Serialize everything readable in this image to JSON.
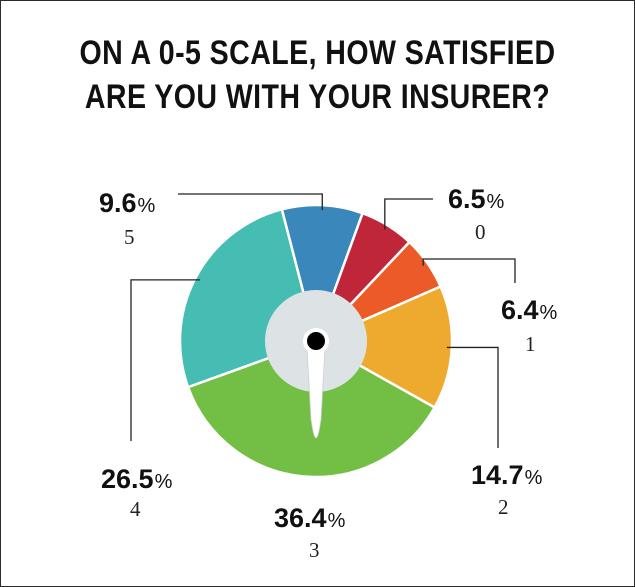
{
  "chart_data": {
    "type": "pie",
    "title_lines": [
      "ON A 0-5 SCALE, HOW SATISFIED",
      "ARE YOU WITH YOUR INSURER?"
    ],
    "percent_sign": "%",
    "slices": [
      {
        "category": "0",
        "value": 6.5,
        "value_label": "6.5",
        "color": "#c0263a"
      },
      {
        "category": "1",
        "value": 6.4,
        "value_label": "6.4",
        "color": "#ec5a28"
      },
      {
        "category": "2",
        "value": 14.7,
        "value_label": "14.7",
        "color": "#eeaa2e"
      },
      {
        "category": "3",
        "value": 36.4,
        "value_label": "36.4",
        "color": "#73bf45"
      },
      {
        "category": "4",
        "value": 26.5,
        "value_label": "26.5",
        "color": "#45bdb3"
      },
      {
        "category": "5",
        "value": 9.6,
        "value_label": "9.6",
        "color": "#3a87bc"
      }
    ],
    "start_angle_deg": 20,
    "hub_color": "#dde3e5",
    "separator_color": "#ffffff",
    "legend": "none"
  }
}
